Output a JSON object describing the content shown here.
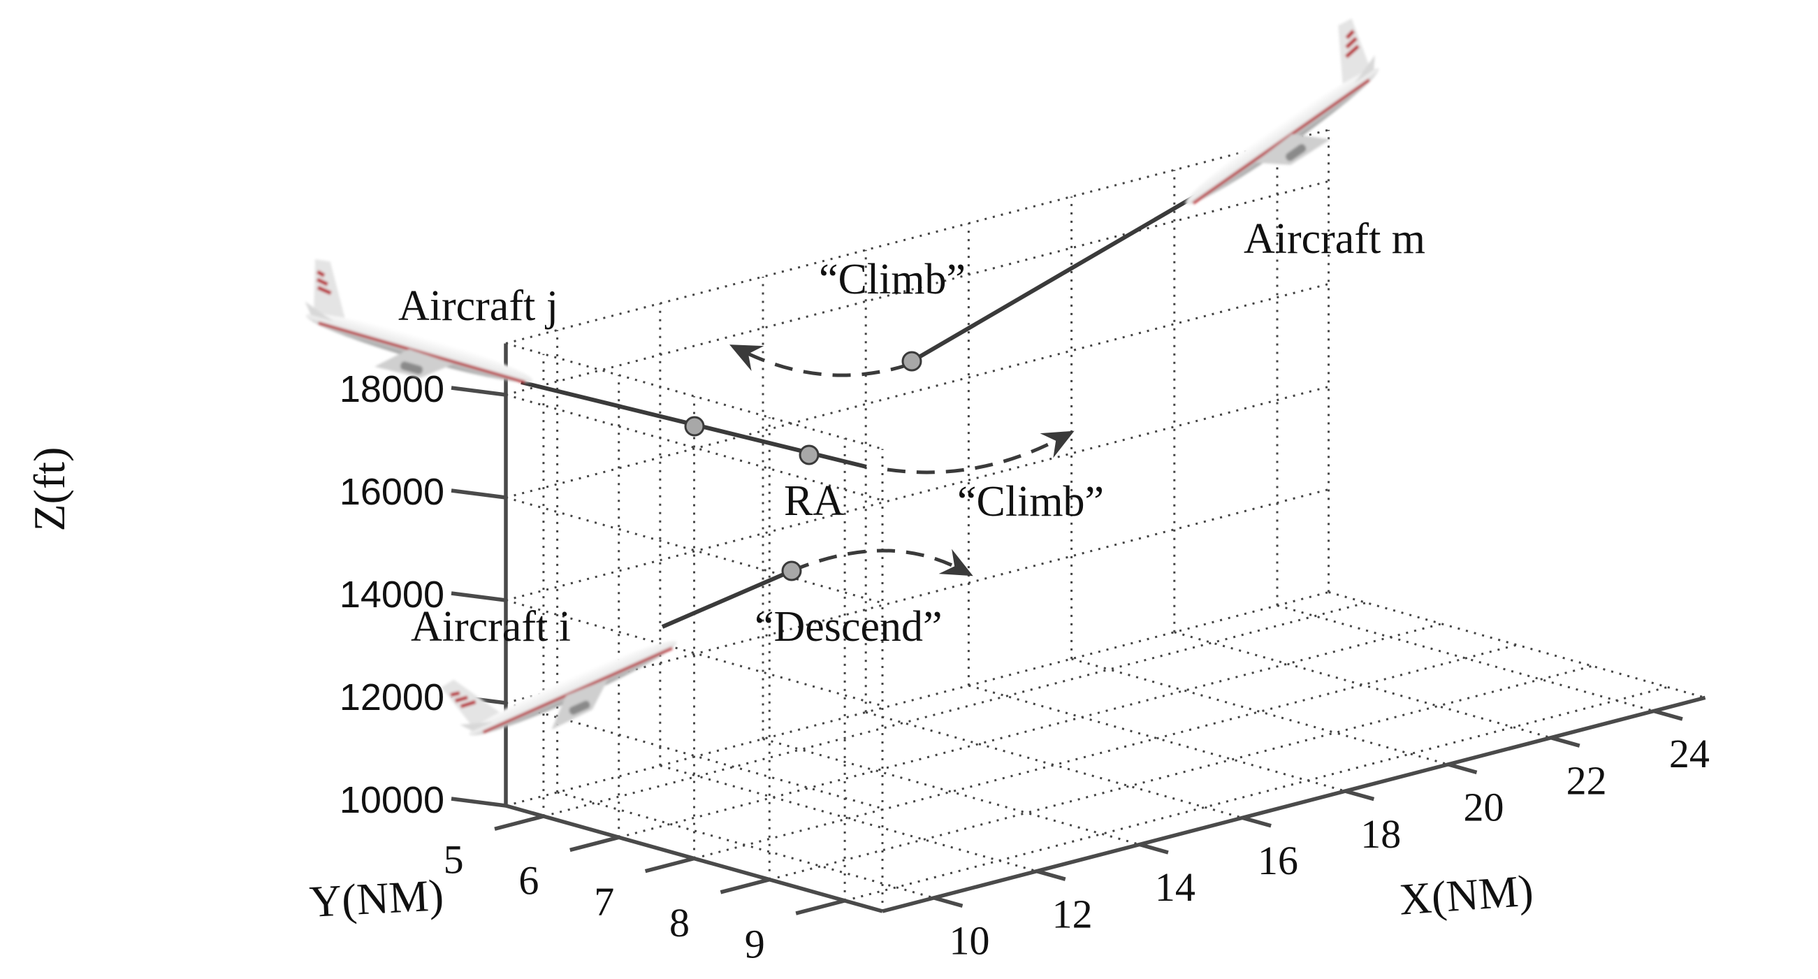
{
  "chart_data": {
    "type": "3d-trajectory",
    "xlabel": "X(NM)",
    "ylabel": "Y(NM)",
    "zlabel": "Z(ft)",
    "x_ticks": [
      "10",
      "12",
      "14",
      "16",
      "18",
      "20",
      "22",
      "24"
    ],
    "y_ticks": [
      "5",
      "6",
      "7",
      "8",
      "9"
    ],
    "z_ticks": [
      "10000",
      "12000",
      "14000",
      "16000",
      "18000"
    ],
    "xlim": [
      9,
      25
    ],
    "ylim": [
      4.5,
      9.5
    ],
    "zlim": [
      10000,
      19000
    ],
    "grid": true,
    "colors": {
      "axis": "#4a4a4a",
      "trajectory": "#3a3a3a",
      "waypoint": "#a8a8a8",
      "aircraft_stripe": "#b8202a"
    },
    "aircraft": [
      {
        "name": "Aircraft i",
        "label": "Aircraft i"
      },
      {
        "name": "Aircraft j",
        "label": "Aircraft j"
      },
      {
        "name": "Aircraft m",
        "label": "Aircraft m"
      }
    ],
    "annotations": [
      {
        "id": "climb_m",
        "text": "“Climb”"
      },
      {
        "id": "climb_j",
        "text": "“Climb”"
      },
      {
        "id": "descend_i",
        "text": "“Descend”"
      },
      {
        "id": "ra",
        "text": "RA"
      }
    ]
  }
}
